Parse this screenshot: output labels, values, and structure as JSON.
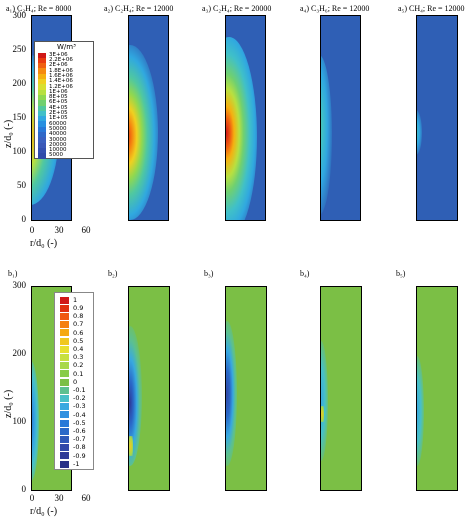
{
  "figure": {
    "row_a_titles": [
      "a₁) C₂H₄; Re = 8000",
      "a₂) C₂H₄; Re = 12000",
      "a₃) C₂H₄; Re = 20000",
      "a₄) C₃H₆; Re = 12000",
      "a₅) CH₄; Re = 12000"
    ],
    "row_b_titles": [
      "b₁)",
      "b₂)",
      "b₃)",
      "b₄)",
      "b₅)"
    ],
    "ylabel": "z/d₀ (-)",
    "xlabel": "r/d₀ (-)",
    "legend_a_unit": "W/m³",
    "colors": {
      "field_a_bg": "#2f5fb5",
      "field_b_bg": "#7bbf45"
    }
  },
  "chart_data": [
    {
      "type": "heatmap",
      "row": "a",
      "panels": [
        "a₁) C₂H₄; Re = 8000",
        "a₂) C₂H₄; Re = 12000",
        "a₃) C₂H₄; Re = 20000",
        "a₄) C₃H₆; Re = 12000",
        "a₅) CH₄; Re = 12000"
      ],
      "xlabel": "r/d₀ (-)",
      "ylabel": "z/d₀ (-)",
      "xlim": [
        0,
        40
      ],
      "ylim": [
        0,
        300
      ],
      "xticks": [
        "0",
        "30",
        "60"
      ],
      "yticks": [
        "0",
        "50",
        "100",
        "150",
        "200",
        "250",
        "300"
      ],
      "legend_title": "W/m³",
      "legend_levels": [
        "3E+06",
        "2.2E+06",
        "2E+06",
        "1.8E+06",
        "1.6E+06",
        "1.4E+06",
        "1.2E+06",
        "1E+06",
        "8E+05",
        "6E+05",
        "4E+05",
        "2E+05",
        "1E+05",
        "60000",
        "50000",
        "40000",
        "30000",
        "20000",
        "10000",
        "5000"
      ],
      "peak_region_z": [
        120,
        150
      ],
      "relative_peak_intensity": [
        0.95,
        0.8,
        0.95,
        0.45,
        0.2
      ]
    },
    {
      "type": "heatmap",
      "row": "b",
      "panels": [
        "b₁)",
        "b₂)",
        "b₃)",
        "b₄)",
        "b₅)"
      ],
      "xlabel": "r/d₀ (-)",
      "ylabel": "z/d₀ (-)",
      "xlim": [
        0,
        40
      ],
      "ylim": [
        0,
        300
      ],
      "xticks": [
        "0",
        "30",
        "60"
      ],
      "yticks": [
        "0",
        "100",
        "200",
        "300"
      ],
      "legend_levels": [
        "1",
        "0.9",
        "0.8",
        "0.7",
        "0.6",
        "0.5",
        "0.4",
        "0.3",
        "0.2",
        "0.1",
        "0",
        "-0.1",
        "-0.2",
        "-0.3",
        "-0.4",
        "-0.5",
        "-0.6",
        "-0.7",
        "-0.8",
        "-0.9",
        "-1"
      ]
    }
  ],
  "legend_a_colors": [
    "#d01818",
    "#e83a10",
    "#f06010",
    "#f58a10",
    "#f5b010",
    "#f0d020",
    "#d8e030",
    "#b8e040",
    "#90d850",
    "#70d070",
    "#50c8a0",
    "#40c0c8",
    "#30a8e0",
    "#2890e0",
    "#2878d8",
    "#2f68c8",
    "#3a60c0",
    "#3a58b8",
    "#3350b0",
    "#2f4aa8"
  ],
  "legend_b_colors": [
    "#d01818",
    "#e03010",
    "#f05810",
    "#f58010",
    "#f5a810",
    "#f0c820",
    "#e8e030",
    "#c8e040",
    "#a8d848",
    "#88cc48",
    "#7bbf45",
    "#5cc090",
    "#48c0c8",
    "#38a8e0",
    "#3090e0",
    "#2878d8",
    "#2a68c8",
    "#2e58b8",
    "#3048a8",
    "#2e3a98",
    "#283088"
  ]
}
